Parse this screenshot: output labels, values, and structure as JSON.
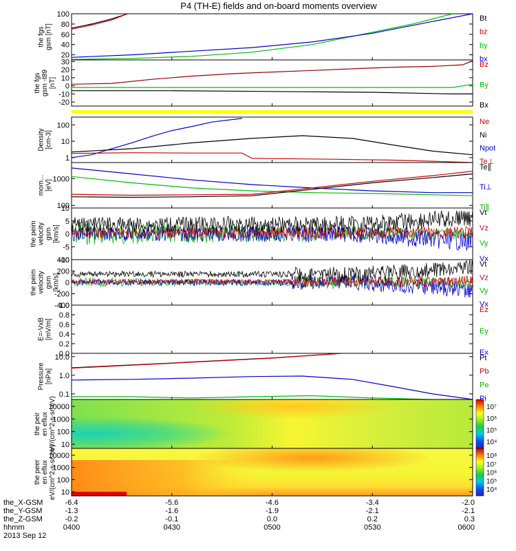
{
  "title": "P4 (TH-E) fields and on-board moments overview",
  "footer": {
    "row_labels": [
      "the_X-GSM",
      "the_Y-GSM",
      "the_Z-GSM",
      "hhmm"
    ],
    "date": "2013 Sep 12",
    "columns": [
      {
        "x": "-6.4",
        "y": "-1.3",
        "z": "-0.2",
        "t": "0400"
      },
      {
        "x": "-5.6",
        "y": "-1.6",
        "z": "-0.1",
        "t": "0430"
      },
      {
        "x": "-4.6",
        "y": "-1.9",
        "z": "0.0",
        "t": "0500"
      },
      {
        "x": "-3.4",
        "y": "-2.1",
        "z": "0.2",
        "t": "0530"
      },
      {
        "x": "-2.0",
        "y": "-2.1",
        "z": "0.3",
        "t": "0600"
      }
    ]
  },
  "chart_data": [
    {
      "type": "line",
      "ylabel": "the fgs gsm [nT]",
      "ylim": [
        10,
        100
      ],
      "yticks": [
        "100",
        "80",
        "60",
        "40",
        "20"
      ],
      "x_hours": [
        4.0,
        4.5,
        5.0,
        5.5,
        6.0
      ],
      "legend": [
        {
          "name": "Bt",
          "color": "#000000"
        },
        {
          "name": "bz",
          "color": "#cc0000"
        },
        {
          "name": "by",
          "color": "#00bb00"
        },
        {
          "name": "bx",
          "color": "#0000cc"
        }
      ],
      "series": [
        {
          "name": "Bt",
          "color": "#000000",
          "x": [
            4.0,
            4.1,
            4.2,
            4.28
          ],
          "values": [
            72,
            80,
            90,
            100
          ]
        },
        {
          "name": "bz",
          "color": "#cc0000",
          "x": [
            4.0,
            4.1,
            4.2,
            4.28
          ],
          "values": [
            70,
            78,
            88,
            100
          ]
        },
        {
          "name": "by",
          "color": "#00bb00",
          "x": [
            4.0,
            4.3,
            4.6,
            4.9,
            5.2,
            5.45,
            5.7,
            5.9
          ],
          "values": [
            11,
            13,
            17,
            25,
            40,
            60,
            80,
            100
          ]
        },
        {
          "name": "bx",
          "color": "#0000cc",
          "x": [
            4.0,
            4.3,
            4.6,
            4.9,
            5.2,
            5.5,
            5.8,
            6.0
          ],
          "values": [
            15,
            20,
            27,
            34,
            45,
            62,
            85,
            100
          ]
        }
      ]
    },
    {
      "type": "line",
      "ylabel": "the fgs gsm -t89 [nT]",
      "ylim": [
        -25,
        32
      ],
      "yticks": [
        "30",
        "20",
        "10",
        "0",
        "-10",
        "-20"
      ],
      "legend": [
        {
          "name": "Bz",
          "color": "#cc0000"
        },
        {
          "name": "By",
          "color": "#00bb00"
        },
        {
          "name": "Bx",
          "color": "#000000"
        }
      ],
      "series": [
        {
          "name": "Bz",
          "color": "#990000",
          "x": [
            4.0,
            4.2,
            4.4,
            4.6,
            4.8,
            5.0,
            5.2,
            5.4,
            5.6,
            5.8,
            5.95,
            6.0
          ],
          "values": [
            2,
            3,
            8,
            12,
            15,
            17,
            19,
            21,
            23,
            24,
            26,
            31
          ]
        },
        {
          "name": "By",
          "color": "#00bb00",
          "x": [
            4.0,
            4.5,
            5.0,
            5.5,
            5.9,
            6.0
          ],
          "values": [
            -2,
            -2,
            -2,
            -2,
            -2,
            2
          ]
        },
        {
          "name": "Bx",
          "color": "#000000",
          "x": [
            4.0,
            4.5,
            5.0,
            5.5,
            5.9,
            6.0
          ],
          "values": [
            -6,
            -6,
            -7,
            -8,
            -10,
            -10
          ]
        }
      ]
    },
    {
      "type": "line",
      "ylabel": "Density [cm-3]",
      "ylim": [
        0.5,
        300
      ],
      "log": true,
      "yticks": [
        "100",
        "10",
        "1"
      ],
      "legend": [
        {
          "name": "Ne",
          "color": "#cc0000"
        },
        {
          "name": "Ni",
          "color": "#000000"
        },
        {
          "name": "Npot",
          "color": "#0000cc"
        },
        {
          "name": "Te⊥",
          "color": "#cc0000"
        }
      ],
      "series": [
        {
          "name": "Npot",
          "color": "#0000cc",
          "x": [
            4.0,
            4.1,
            4.2,
            4.3,
            4.4,
            4.5,
            4.6,
            4.7,
            4.85
          ],
          "values": [
            1.0,
            1.5,
            3.5,
            8,
            20,
            45,
            80,
            150,
            250
          ]
        },
        {
          "name": "Ni",
          "color": "#000000",
          "x": [
            4.0,
            4.3,
            4.6,
            4.9,
            5.15,
            5.4,
            5.6,
            5.8,
            6.0
          ],
          "values": [
            2.2,
            3.5,
            8,
            15,
            22,
            15,
            6,
            2.5,
            1.5
          ]
        },
        {
          "name": "Ne",
          "color": "#cc0000",
          "x": [
            4.0,
            4.3,
            4.6,
            4.85,
            4.9,
            5.3,
            5.6,
            5.8,
            6.0
          ],
          "values": [
            1.8,
            2.0,
            1.9,
            1.9,
            0.9,
            0.8,
            0.7,
            0.6,
            0.5
          ]
        }
      ]
    },
    {
      "type": "line",
      "ylabel": "mom... [eV]",
      "ylim": [
        80,
        4000
      ],
      "log": true,
      "yticks": [
        "1000",
        "100"
      ],
      "legend": [
        {
          "name": "Te∥",
          "color": "#000000"
        },
        {
          "name": "Ti⊥",
          "color": "#0000cc"
        },
        {
          "name": "Ti∥",
          "color": "#00bb00"
        }
      ],
      "series": [
        {
          "name": "Ti⊥",
          "color": "#0000cc",
          "x": [
            4.0,
            4.3,
            4.6,
            4.9,
            5.2,
            5.5,
            5.8,
            6.0
          ],
          "values": [
            2500,
            1500,
            900,
            600,
            450,
            350,
            300,
            300
          ]
        },
        {
          "name": "Ti∥",
          "color": "#00bb00",
          "x": [
            4.0,
            4.3,
            4.6,
            4.9,
            5.2,
            5.5,
            5.8,
            6.0
          ],
          "values": [
            1200,
            700,
            450,
            350,
            300,
            280,
            250,
            230
          ]
        },
        {
          "name": "Te⊥",
          "color": "#cc0000",
          "x": [
            4.0,
            4.3,
            4.6,
            4.9,
            5.2,
            5.5,
            5.8,
            6.0
          ],
          "values": [
            260,
            240,
            250,
            260,
            450,
            800,
            1300,
            1900
          ]
        },
        {
          "name": "Te∥",
          "color": "#000000",
          "x": [
            4.0,
            4.3,
            4.6,
            4.9,
            5.2,
            5.5,
            5.8,
            6.0
          ],
          "values": [
            210,
            200,
            210,
            230,
            400,
            700,
            1100,
            1500
          ]
        }
      ]
    },
    {
      "type": "line",
      "ylabel": "the peim velocity gsm [km/s]",
      "ylim": [
        -10,
        10
      ],
      "yticks": [
        "10",
        "5",
        "0",
        "-5",
        "-10"
      ],
      "legend": [
        {
          "name": "Vt",
          "color": "#000000"
        },
        {
          "name": "Vz",
          "color": "#cc0000"
        },
        {
          "name": "Vy",
          "color": "#00bb00"
        },
        {
          "name": "Vx",
          "color": "#0000cc"
        }
      ],
      "noise": true
    },
    {
      "type": "line",
      "ylabel": "the peim velocity gsm [km/s]",
      "ylim": [
        -400,
        400
      ],
      "yticks": [
        "400",
        "200",
        "0",
        "-200",
        "-400"
      ],
      "legend": [
        {
          "name": "Vt",
          "color": "#000000"
        },
        {
          "name": "Vz",
          "color": "#cc0000"
        },
        {
          "name": "Vy",
          "color": "#00bb00"
        },
        {
          "name": "Vx",
          "color": "#0000cc"
        }
      ],
      "noise": true
    },
    {
      "type": "line",
      "ylabel": "E=-VxB [mV/m]",
      "ylim": [
        0,
        1
      ],
      "yticks": [
        "1.0",
        "0.8",
        "0.6",
        "0.4",
        "0.2",
        "0.0"
      ],
      "legend": [
        {
          "name": "Ez",
          "color": "#cc0000"
        },
        {
          "name": "Ey",
          "color": "#00bb00"
        },
        {
          "name": "Ex",
          "color": "#0000cc"
        }
      ]
    },
    {
      "type": "line",
      "ylabel": "Pressure [nPa]",
      "ylim": [
        0.05,
        15
      ],
      "log": true,
      "yticks": [
        "10.0",
        "1.0",
        "0.1"
      ],
      "legend": [
        {
          "name": "Pt",
          "color": "#000000"
        },
        {
          "name": "Pb",
          "color": "#cc0000"
        },
        {
          "name": "Pe",
          "color": "#00bb00"
        },
        {
          "name": "Pi",
          "color": "#0000cc"
        }
      ],
      "series": [
        {
          "name": "Pt",
          "color": "#000000",
          "x": [
            4.0,
            4.5,
            5.0,
            5.35
          ],
          "values": [
            2.5,
            4.5,
            8.5,
            15
          ]
        },
        {
          "name": "Pb",
          "color": "#cc0000",
          "x": [
            4.0,
            4.5,
            5.0,
            5.35
          ],
          "values": [
            2.4,
            4.4,
            8.3,
            15
          ]
        },
        {
          "name": "Pi",
          "color": "#0000cc",
          "x": [
            4.0,
            4.3,
            4.6,
            4.9,
            5.15,
            5.4,
            5.6,
            5.8,
            5.95,
            6.0
          ],
          "values": [
            0.55,
            0.6,
            0.7,
            0.85,
            0.9,
            0.6,
            0.25,
            0.1,
            0.06,
            0.05
          ]
        },
        {
          "name": "Pe",
          "color": "#00bb00",
          "x": [
            4.0,
            4.3,
            4.6,
            4.9,
            5.2,
            5.5,
            5.8,
            6.0
          ],
          "values": [
            0.07,
            0.07,
            0.06,
            0.07,
            0.08,
            0.06,
            0.05,
            0.05
          ]
        }
      ]
    },
    {
      "type": "heatmap",
      "ylabel": "the peir en eflux eV/(cm^2-s-sr-eV)",
      "yticks": [
        "10000",
        "1000",
        "100",
        "10"
      ],
      "colorbar": [
        "10⁷",
        "10⁶",
        "10⁵",
        "10⁴"
      ]
    },
    {
      "type": "heatmap",
      "ylabel": "the peer en eflux eV/(cm^2-s-sr-eV)",
      "yticks": [
        "10000",
        "1000",
        "100",
        "10"
      ],
      "colorbar": [
        "10⁸",
        "10⁷",
        "10⁶",
        "10⁵",
        "10⁴"
      ]
    }
  ]
}
